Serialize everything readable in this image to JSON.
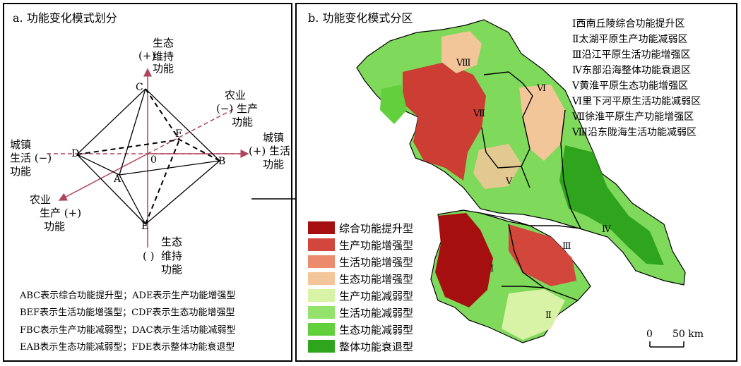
{
  "panel_a": {
    "title": "a. 功能变化模式划分",
    "axes": {
      "top": [
        "生态",
        "(+)",
        "维持",
        "功能"
      ],
      "bottom": [
        "生态",
        "( )",
        "维持",
        "功能"
      ],
      "left": [
        "城镇",
        "生活 (−)",
        "功能"
      ],
      "right": [
        "城镇",
        "(+) 生活",
        "功能"
      ],
      "upper_right": [
        "农业",
        "(−) 生产",
        "功能"
      ],
      "lower_left": [
        "农业",
        "生产 (+)",
        "功能"
      ]
    },
    "points": {
      "A": "A",
      "B": "B",
      "C": "C",
      "D": "D",
      "E": "E",
      "F": "F",
      "O": "0"
    },
    "explanations": [
      "ABC表示综合功能提升型；ADE表示生产功能增强型",
      "BEF表示生活功能增强型；CDF表示生态功能增强型",
      "FBC表示生产功能减弱型；DAC表示生活功能减弱型",
      "EAB表示生态功能减弱型；FDE表示整体功能衰退型"
    ]
  },
  "panel_b": {
    "title": "b. 功能变化模式分区",
    "zones": [
      "Ⅰ西南丘陵综合功能提升区",
      "Ⅱ太湖平原生产功能减弱区",
      "Ⅲ沿江平原生活功能增强区",
      "Ⅳ东部沿海整体功能衰退区",
      "Ⅴ黄淮平原生态功能增强区",
      "Ⅵ里下河平原生活功能减弱区",
      "Ⅶ徐淮平原生产功能增强区",
      "Ⅷ沿东陇海生活功能减弱区"
    ],
    "map_zone_labels": [
      "Ⅰ",
      "Ⅱ",
      "Ⅲ",
      "Ⅳ",
      "Ⅴ",
      "Ⅵ",
      "Ⅶ",
      "Ⅷ"
    ],
    "legend": [
      {
        "label": "综合功能提升型",
        "color": "#a50f0f"
      },
      {
        "label": "生产功能增强型",
        "color": "#d2463c"
      },
      {
        "label": "生活功能增强型",
        "color": "#ec8a6e"
      },
      {
        "label": "生态功能增强型",
        "color": "#f3c69a"
      },
      {
        "label": "生产功能减弱型",
        "color": "#d8f3a6"
      },
      {
        "label": "生活功能减弱型",
        "color": "#92e26c"
      },
      {
        "label": "生态功能减弱型",
        "color": "#62cf3c"
      },
      {
        "label": "整体功能衰退型",
        "color": "#2fa51e"
      }
    ],
    "scale": {
      "zero": "0",
      "distance": "50 km"
    }
  },
  "colors": {
    "axis": "#b0445c",
    "frame": "#000000"
  }
}
